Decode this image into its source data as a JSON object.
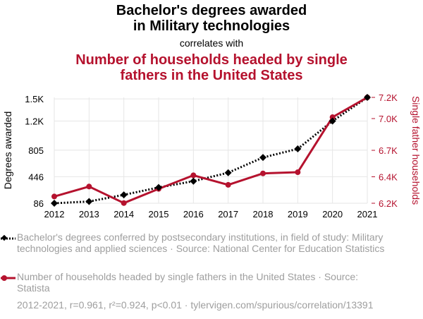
{
  "header": {
    "title_line1": "Bachelor's degrees awarded",
    "title_line2": "in Military technologies",
    "correlates": "correlates with",
    "title2_line1": "Number of households headed by single",
    "title2_line2": "fathers in the United States"
  },
  "colors": {
    "series1": "#000000",
    "series2": "#b5122e",
    "grid": "#e6e6e6",
    "legend_text": "#9e9e9e"
  },
  "chart_data": {
    "type": "line",
    "x": [
      2012,
      2013,
      2014,
      2015,
      2016,
      2017,
      2018,
      2019,
      2020,
      2021
    ],
    "x_ticks": [
      "2012",
      "2013",
      "2014",
      "2015",
      "2016",
      "2017",
      "2018",
      "2019",
      "2020",
      "2021"
    ],
    "grid": true,
    "left_axis": {
      "label": "Degrees awarded",
      "ticks": [
        86,
        446,
        805,
        1200,
        1500
      ],
      "tick_labels": [
        "86",
        "446",
        "805",
        "1.2K",
        "1.5K"
      ],
      "range": [
        86,
        1520
      ]
    },
    "right_axis": {
      "label": "Single father households",
      "ticks": [
        6200,
        6450,
        6700,
        7000,
        7200
      ],
      "tick_labels": [
        "6.2K",
        "6.4K",
        "6.7K",
        "7.0K",
        "7.2K"
      ],
      "range": [
        6200,
        7200
      ]
    },
    "series": [
      {
        "name": "Bachelor's degrees conferred by postsecondary institutions, in field of study: Military technologies and applied sciences",
        "axis": "left",
        "style": "dotted",
        "marker": "diamond",
        "values": [
          86,
          110,
          200,
          300,
          385,
          500,
          706,
          823,
          1200,
          1520
        ]
      },
      {
        "name": "Number of households headed by single fathers in the United States",
        "axis": "right",
        "style": "solid",
        "marker": "circle",
        "values": [
          6264,
          6358,
          6202,
          6336,
          6464,
          6374,
          6482,
          6493,
          7013,
          7200
        ]
      }
    ]
  },
  "legend": {
    "item1_text": "Bachelor's degrees conferred by postsecondary institutions, in field of study: Military technologies and applied sciences · Source: National Center for Education Statistics",
    "item2_text": "Number of households headed by single fathers in the United States · Source: Statista"
  },
  "footnote": "2012-2021, r=0.961, r²=0.924, p<0.01 · tylervigen.com/spurious/correlation/13391"
}
